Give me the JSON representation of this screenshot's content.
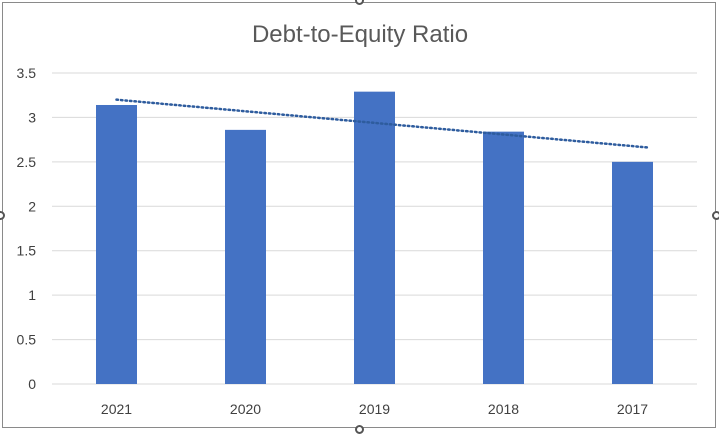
{
  "chart_data": {
    "type": "bar",
    "title": "Debt-to-Equity Ratio",
    "categories": [
      "2021",
      "2020",
      "2019",
      "2018",
      "2017"
    ],
    "values": [
      3.14,
      2.86,
      3.29,
      2.84,
      2.5
    ],
    "ylim": [
      0,
      3.5
    ],
    "yticks": [
      "0",
      "0.5",
      "1",
      "1.5",
      "2",
      "2.5",
      "3",
      "3.5"
    ],
    "xlabel": "",
    "ylabel": "",
    "grid": true,
    "legend": "none",
    "trendline": {
      "type": "linear",
      "style": "dotted",
      "start": 3.2,
      "end": 2.66
    },
    "colors": {
      "bar": "#4472C4",
      "trendline": "#2E5C9E",
      "gridline": "#D9D9D9"
    }
  }
}
